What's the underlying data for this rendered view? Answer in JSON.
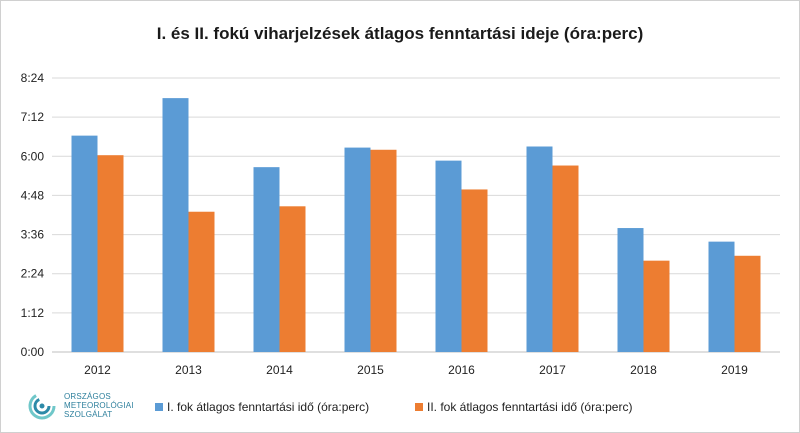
{
  "chart_data": {
    "type": "bar",
    "title": "I. és II. fokú viharjelzések átlagos fenntartási ideje (óra:perc)",
    "categories": [
      "2012",
      "2013",
      "2014",
      "2015",
      "2016",
      "2017",
      "2018",
      "2019"
    ],
    "series": [
      {
        "name": "I. fok átlagos fenntartási idő (óra:perc)",
        "color": "#5b9bd5",
        "values_minutes": [
          398,
          467,
          340,
          376,
          352,
          378,
          228,
          203
        ]
      },
      {
        "name": "II. fok átlagos fenntartási idő (óra:perc)",
        "color": "#ed7d31",
        "values_minutes": [
          362,
          258,
          268,
          372,
          299,
          343,
          168,
          177
        ]
      }
    ],
    "yticks": [
      "0:00",
      "1:12",
      "2:24",
      "3:36",
      "4:48",
      "6:00",
      "7:12",
      "8:24"
    ],
    "ylim_minutes": [
      0,
      504
    ],
    "grid": true,
    "legend_position": "bottom"
  },
  "logo": {
    "line1": "ORSZÁGOS",
    "line2": "METEOROLÓGIAI",
    "line3": "SZOLGÁLAT"
  }
}
